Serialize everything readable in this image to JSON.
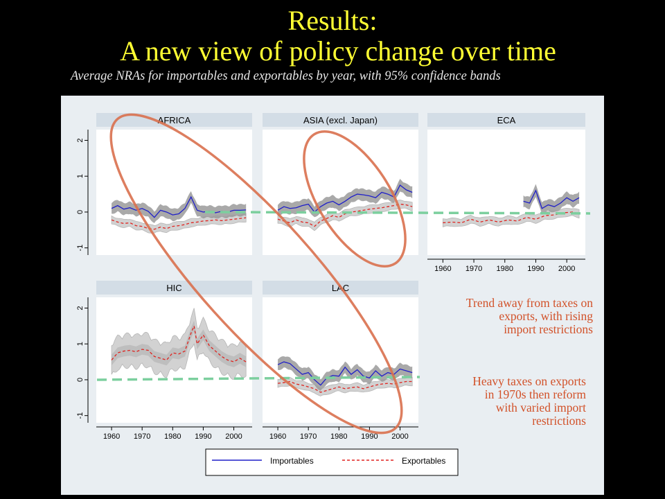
{
  "header": {
    "title_line1": "Results:",
    "title_line2": "A new view of policy change over time",
    "subtitle": "Average NRAs for importables and exportables by year, with 95% confidence bands"
  },
  "annotations": {
    "upper": "Trend away from taxes on\nexports, with rising\nimport restrictions",
    "lower": "Heavy taxes on exports\nin 1970s then reform\nwith varied import\nrestrictions"
  },
  "colors": {
    "importables": "#1f1fc8",
    "exportables": "#e0221e",
    "band": "#9a9a9a",
    "band_light": "#d2d2d2",
    "zero_line": "#7ccf9e",
    "ellipse": "#d9704e",
    "title": "#ffff33",
    "annotation": "#d2522a"
  },
  "chart_data": {
    "type": "line",
    "xlim": [
      1955,
      2006
    ],
    "ylim": [
      -1.2,
      2.3
    ],
    "x_ticks": [
      1960,
      1970,
      1980,
      1990,
      2000
    ],
    "y_ticks": [
      -1,
      0,
      1,
      2
    ],
    "legend": {
      "placement": "bottom",
      "items": [
        "Importables",
        "Exportables"
      ]
    },
    "panels": [
      {
        "name": "AFRICA",
        "importables": {
          "x": [
            1960,
            1962,
            1964,
            1966,
            1968,
            1970,
            1972,
            1974,
            1976,
            1978,
            1980,
            1982,
            1984,
            1986,
            1988,
            1990,
            1992,
            1994,
            1996,
            1998,
            2000,
            2002,
            2004
          ],
          "y": [
            0.1,
            0.18,
            0.08,
            0.12,
            0.05,
            0.1,
            0.02,
            -0.15,
            0.05,
            0.0,
            -0.08,
            -0.05,
            0.1,
            0.42,
            0.05,
            0.0,
            0.02,
            -0.02,
            0.02,
            0.0,
            0.05,
            0.05,
            0.06
          ]
        },
        "exportables": {
          "x": [
            1960,
            1962,
            1964,
            1966,
            1968,
            1970,
            1972,
            1974,
            1976,
            1978,
            1980,
            1982,
            1984,
            1986,
            1988,
            1990,
            1992,
            1994,
            1996,
            1998,
            2000,
            2002,
            2004
          ],
          "y": [
            -0.22,
            -0.28,
            -0.32,
            -0.3,
            -0.38,
            -0.4,
            -0.46,
            -0.48,
            -0.42,
            -0.46,
            -0.4,
            -0.38,
            -0.35,
            -0.3,
            -0.28,
            -0.25,
            -0.24,
            -0.22,
            -0.24,
            -0.22,
            -0.2,
            -0.18,
            -0.16
          ]
        }
      },
      {
        "name": "ASIA (excl. Japan)",
        "importables": {
          "x": [
            1960,
            1962,
            1964,
            1966,
            1968,
            1970,
            1972,
            1974,
            1976,
            1978,
            1980,
            1982,
            1984,
            1986,
            1988,
            1990,
            1992,
            1994,
            1996,
            1998,
            2000,
            2002,
            2004
          ],
          "y": [
            0.05,
            0.15,
            0.1,
            0.12,
            0.18,
            0.22,
            0.0,
            0.15,
            0.25,
            0.3,
            0.2,
            0.3,
            0.42,
            0.5,
            0.48,
            0.45,
            0.4,
            0.55,
            0.5,
            0.42,
            0.75,
            0.62,
            0.55
          ]
        },
        "exportables": {
          "x": [
            1960,
            1962,
            1964,
            1966,
            1968,
            1970,
            1972,
            1974,
            1976,
            1978,
            1980,
            1982,
            1984,
            1986,
            1988,
            1990,
            1992,
            1994,
            1996,
            1998,
            2000,
            2002,
            2004
          ],
          "y": [
            -0.2,
            -0.25,
            -0.3,
            -0.22,
            -0.28,
            -0.3,
            -0.4,
            -0.25,
            -0.18,
            -0.1,
            -0.15,
            -0.05,
            0.0,
            0.02,
            0.05,
            0.08,
            0.1,
            0.12,
            0.15,
            0.18,
            0.22,
            0.2,
            0.15
          ]
        }
      },
      {
        "name": "ECA",
        "importables": {
          "x": [
            1986,
            1988,
            1990,
            1992,
            1994,
            1996,
            1998,
            2000,
            2002,
            2004
          ],
          "y": [
            0.3,
            0.25,
            0.6,
            0.1,
            0.2,
            0.15,
            0.25,
            0.4,
            0.3,
            0.4
          ]
        },
        "exportables": {
          "x": [
            1960,
            1963,
            1966,
            1969,
            1972,
            1975,
            1978,
            1981,
            1984,
            1987,
            1990,
            1993,
            1996,
            1999,
            2002,
            2004
          ],
          "y": [
            -0.3,
            -0.28,
            -0.3,
            -0.2,
            -0.28,
            -0.22,
            -0.28,
            -0.22,
            -0.25,
            -0.15,
            -0.2,
            -0.1,
            -0.08,
            -0.02,
            0.0,
            -0.05
          ]
        }
      },
      {
        "name": "HIC",
        "importables": null,
        "exportables": {
          "x": [
            1960,
            1962,
            1964,
            1966,
            1968,
            1970,
            1972,
            1974,
            1976,
            1978,
            1980,
            1982,
            1984,
            1986,
            1987,
            1988,
            1990,
            1992,
            1994,
            1996,
            1998,
            2000,
            2002,
            2004
          ],
          "y": [
            0.55,
            0.75,
            0.8,
            0.82,
            0.78,
            0.85,
            0.82,
            0.65,
            0.6,
            0.55,
            0.75,
            0.72,
            0.8,
            1.3,
            1.5,
            1.0,
            1.25,
            0.95,
            0.8,
            0.65,
            0.55,
            0.5,
            0.6,
            0.5
          ]
        }
      },
      {
        "name": "LAC",
        "importables": {
          "x": [
            1960,
            1962,
            1964,
            1966,
            1968,
            1970,
            1972,
            1974,
            1976,
            1978,
            1980,
            1982,
            1984,
            1986,
            1988,
            1990,
            1992,
            1994,
            1996,
            1998,
            2000,
            2002,
            2004
          ],
          "y": [
            0.42,
            0.5,
            0.45,
            0.3,
            0.15,
            0.2,
            0.0,
            -0.15,
            0.05,
            0.12,
            0.1,
            0.35,
            0.15,
            0.28,
            0.1,
            0.05,
            0.25,
            0.1,
            0.2,
            0.15,
            0.3,
            0.25,
            0.2
          ]
        },
        "exportables": {
          "x": [
            1960,
            1962,
            1964,
            1966,
            1968,
            1970,
            1972,
            1974,
            1976,
            1978,
            1980,
            1982,
            1984,
            1986,
            1988,
            1990,
            1992,
            1994,
            1996,
            1998,
            2000,
            2002,
            2004
          ],
          "y": [
            -0.1,
            -0.08,
            -0.05,
            -0.12,
            -0.15,
            -0.2,
            -0.25,
            -0.35,
            -0.3,
            -0.25,
            -0.2,
            -0.25,
            -0.22,
            -0.2,
            -0.25,
            -0.2,
            -0.15,
            -0.12,
            -0.1,
            -0.12,
            -0.08,
            -0.05,
            -0.05
          ]
        }
      }
    ]
  }
}
